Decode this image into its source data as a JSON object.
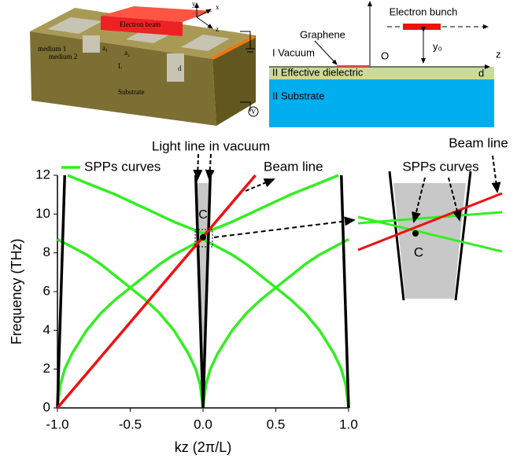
{
  "schematic_3d": {
    "beam_label": "Electron beam",
    "medium1": "medium 1",
    "medium2": "medium 2",
    "a1": "a₁",
    "a2": "a₂",
    "period": "L",
    "depth": "d",
    "substrate": "Substrate",
    "voltage": "V",
    "axis_x": "x",
    "axis_y": "y",
    "axis_z": "z"
  },
  "schematic_2d": {
    "bunch": "Electron bunch",
    "graphene": "Graphene",
    "vacuum": "I Vacuum",
    "origin": "O",
    "axis_z": "z",
    "height": "y₀",
    "dielectric": "II Effective dielectric",
    "depth": "d",
    "substrate": "II Substrate"
  },
  "chart_data": {
    "type": "line",
    "xlabel": "kz (2π/L)",
    "ylabel": "Frequency (THz)",
    "xlim": [
      -1,
      1
    ],
    "ylim": [
      0,
      12
    ],
    "xticks": [
      {
        "value": -1,
        "label": "-1.0"
      },
      -0.5,
      {
        "value": 0,
        "label": "0.0"
      },
      0.5,
      {
        "value": 1,
        "label": "1.0"
      }
    ],
    "yticks": [
      0,
      2,
      4,
      6,
      8,
      10,
      12
    ],
    "series": [
      {
        "name": "SPPs curves",
        "color": "#33ee22",
        "x": [
          0,
          -0.02,
          -0.05,
          -0.1,
          -0.2,
          -0.3,
          -0.4,
          -0.5,
          -0.6,
          -0.7,
          -0.8,
          -0.9,
          -1,
          null,
          -1,
          -0.98,
          -0.95,
          -0.9,
          -0.8,
          -0.7,
          -0.6,
          -0.5,
          -0.4,
          -0.3,
          -0.2,
          -0.1,
          0,
          null,
          0,
          -0.2,
          -0.4,
          -0.6,
          -0.8,
          -0.93,
          null,
          0,
          0.02,
          0.05,
          0.1,
          0.2,
          0.3,
          0.4,
          0.5,
          0.6,
          0.7,
          0.8,
          0.9,
          1,
          null,
          1,
          0.98,
          0.95,
          0.9,
          0.8,
          0.7,
          0.6,
          0.5,
          0.4,
          0.3,
          0.2,
          0.1,
          0,
          null,
          0,
          0.2,
          0.4,
          0.6,
          0.8,
          0.93
        ],
        "values": [
          0,
          1.2,
          2,
          2.8,
          4,
          4.9,
          5.6,
          6.2,
          6.8,
          7.4,
          7.9,
          8.3,
          8.7,
          null,
          0,
          1.2,
          2,
          2.8,
          4,
          4.9,
          5.6,
          6.2,
          6.8,
          7.4,
          7.9,
          8.3,
          8.7,
          null,
          9,
          9.6,
          10.3,
          11,
          11.6,
          12,
          null,
          0,
          1.2,
          2,
          2.8,
          4,
          4.9,
          5.6,
          6.2,
          6.8,
          7.4,
          7.9,
          8.3,
          8.7,
          null,
          0,
          1.2,
          2,
          2.8,
          4,
          4.9,
          5.6,
          6.2,
          6.8,
          7.4,
          7.9,
          8.3,
          8.7,
          null,
          9,
          9.6,
          10.3,
          11,
          11.6,
          12
        ]
      },
      {
        "name": "Light line in vacuum",
        "color": "#000000",
        "x": [
          -1,
          -0.95,
          null,
          0,
          -0.05,
          null,
          0,
          0.05,
          null,
          1,
          0.95
        ],
        "values": [
          0,
          12,
          null,
          0,
          12,
          null,
          0,
          12,
          null,
          0,
          12
        ]
      },
      {
        "name": "Beam line",
        "color": "#ee1111",
        "x": [
          -1,
          0.36
        ],
        "values": [
          0,
          12
        ]
      }
    ],
    "point": {
      "label": "C",
      "x": 0,
      "y": 8.8
    }
  },
  "inset": {
    "beam": "Beam line",
    "spp": "SPPs curves",
    "point": "C"
  }
}
